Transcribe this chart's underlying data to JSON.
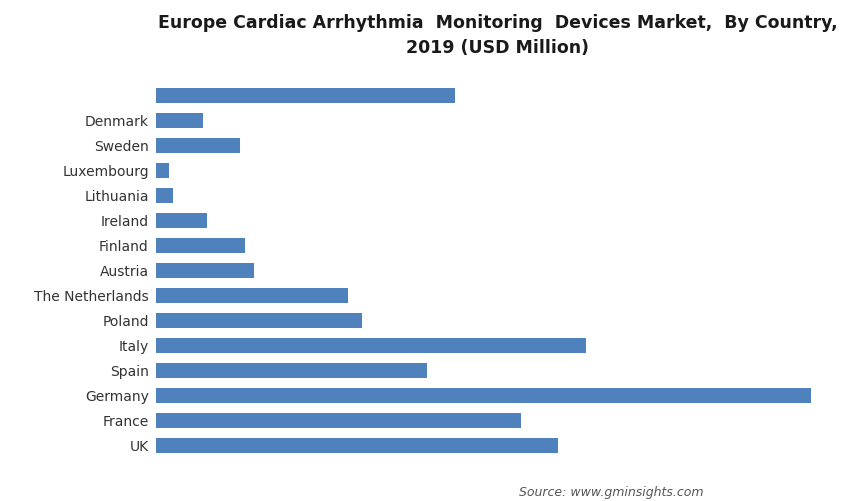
{
  "title": "Europe Cardiac Arrhythmia  Monitoring  Devices Market,  By Country,\n2019 (USD Million)",
  "source_text": "Source: www.gminsights.com",
  "categories": [
    "UK",
    "France",
    "Germany",
    "Spain",
    "Italy",
    "Poland",
    "The Netherlands",
    "Austria",
    "Finland",
    "Ireland",
    "Lithuania",
    "Luxembourg",
    "Sweden",
    "Denmark",
    ""
  ],
  "values": [
    430,
    390,
    700,
    290,
    460,
    220,
    205,
    105,
    95,
    55,
    18,
    14,
    90,
    50,
    320
  ],
  "bar_color": "#4F81BD",
  "background_color": "#ffffff",
  "title_fontsize": 12.5,
  "label_fontsize": 10,
  "source_fontsize": 9,
  "xlim": [
    0,
    730
  ]
}
